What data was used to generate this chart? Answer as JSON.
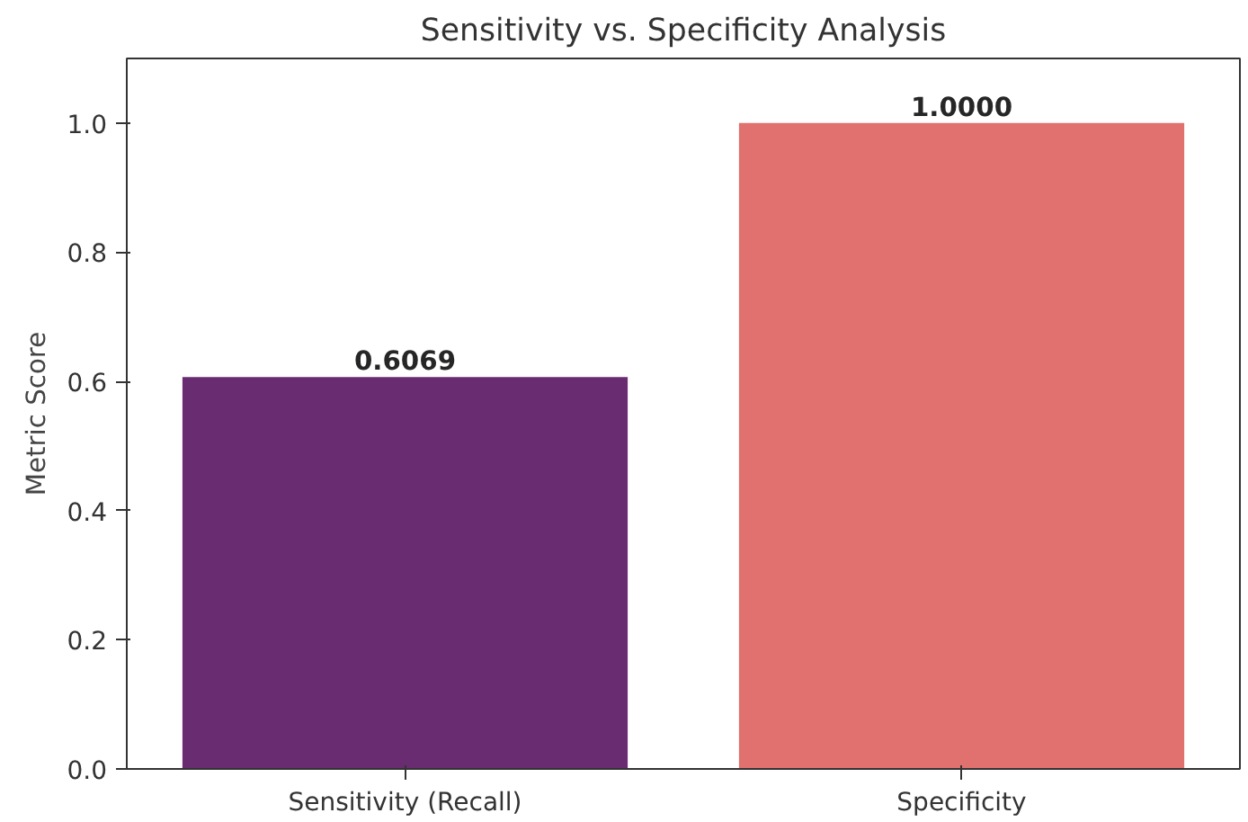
{
  "chart_data": {
    "type": "bar",
    "title": "Sensitivity vs. Specificity Analysis",
    "ylabel": "Metric Score",
    "categories": [
      "Sensitivity (Recall)",
      "Specificity"
    ],
    "values": [
      0.6069,
      1.0
    ],
    "colors": [
      "#6a2c70",
      "#e0716e"
    ],
    "value_labels": [
      "0.6069",
      "1.0000"
    ],
    "ylim": [
      0,
      1.1
    ],
    "yticks": [
      {
        "value": 0,
        "label": "0.0"
      },
      0.2,
      0.4,
      0.6,
      0.8,
      {
        "value": 1,
        "label": "1.0"
      }
    ],
    "grid": false
  }
}
